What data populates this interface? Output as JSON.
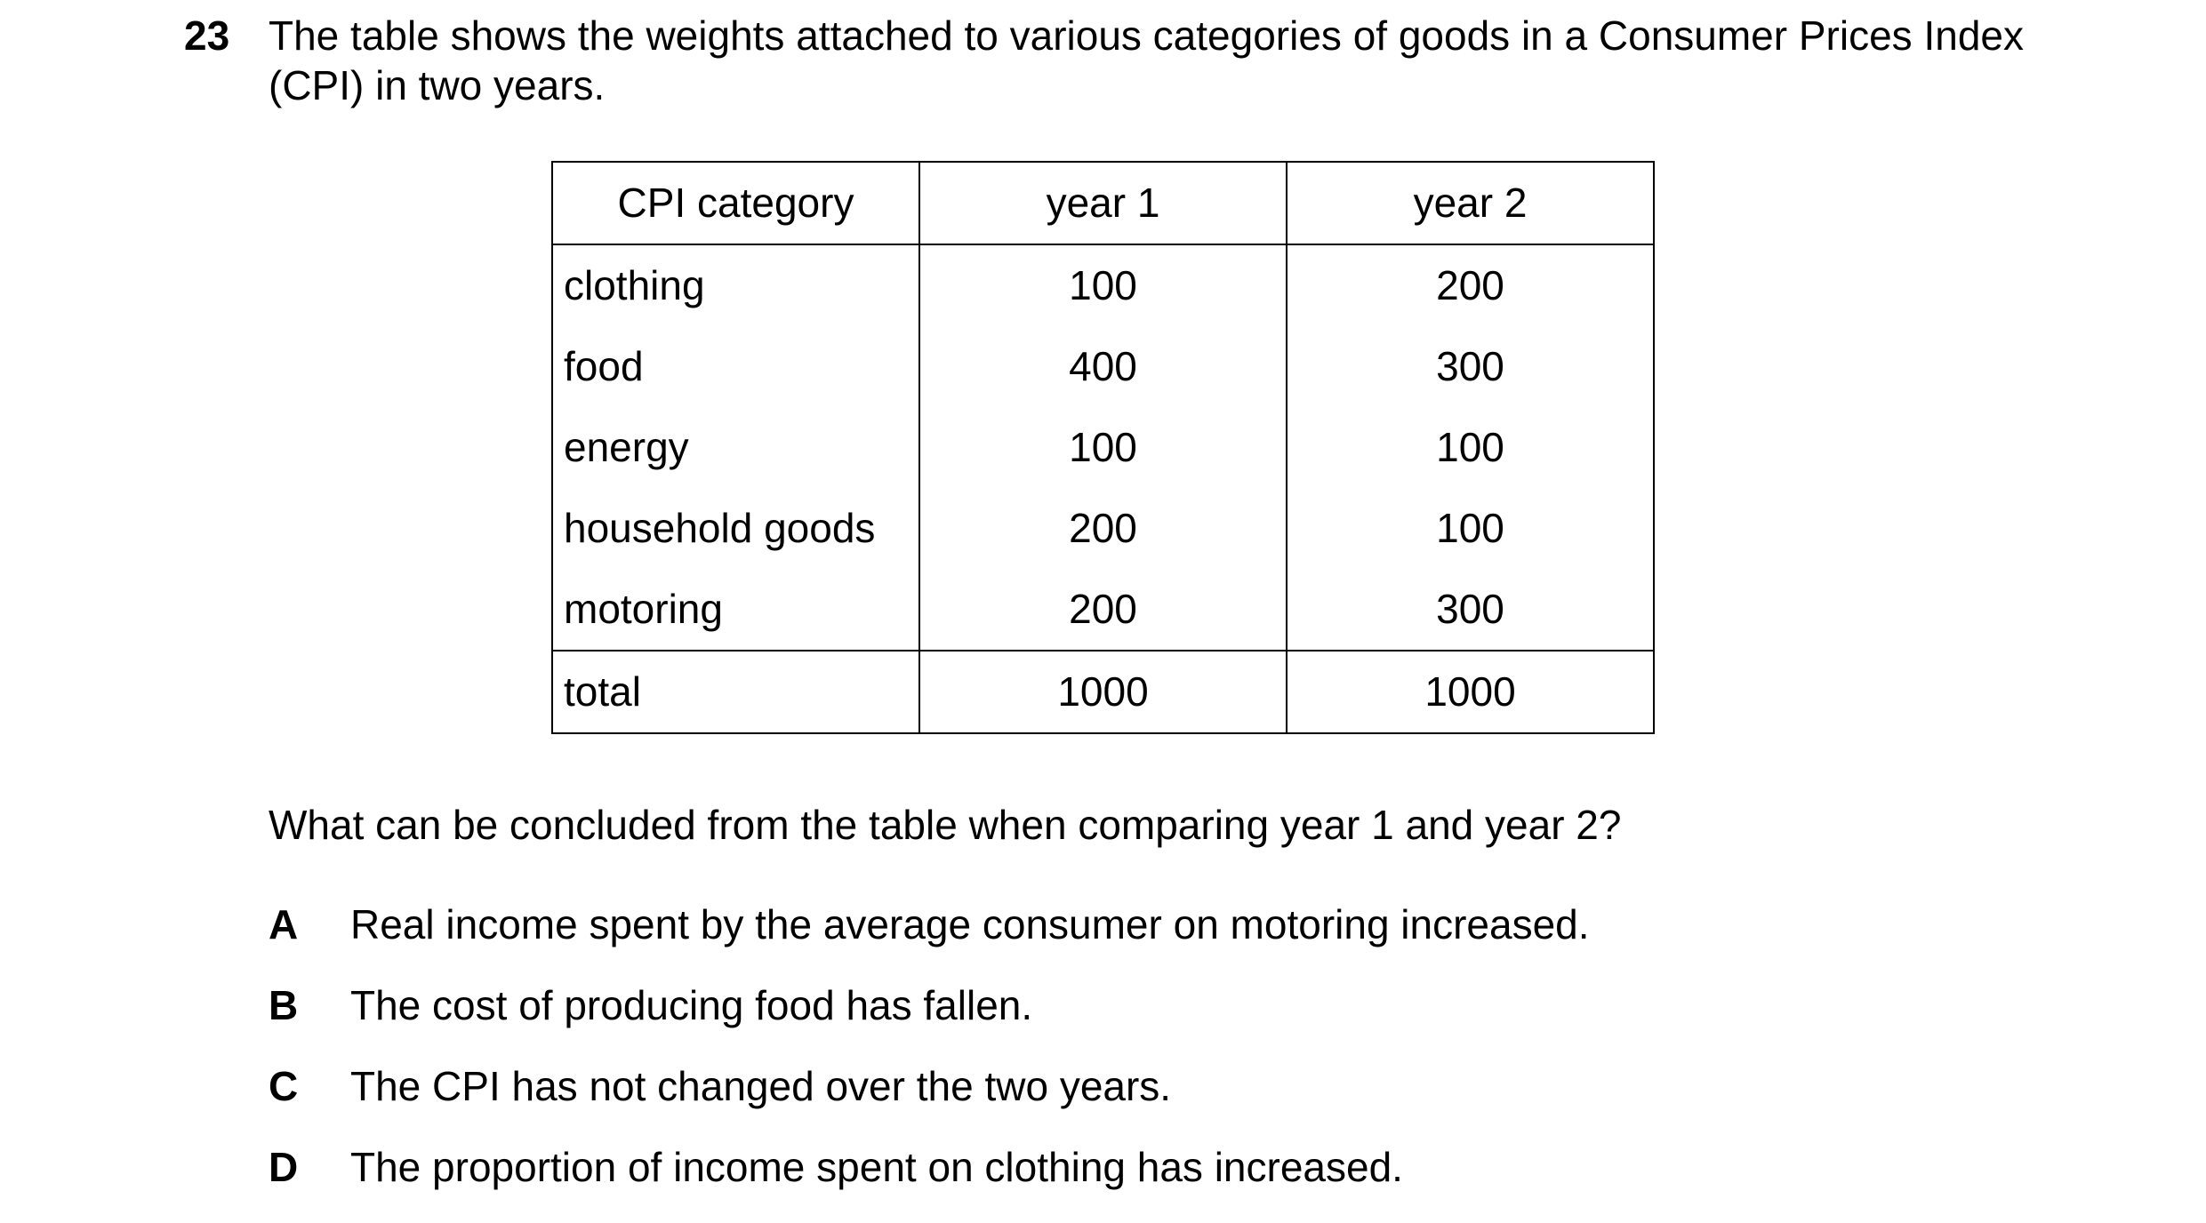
{
  "question_number": "23",
  "stem_lines": [
    "The table shows the weights attached to various categories of goods in a Consumer Prices Index",
    "(CPI) in two years."
  ],
  "table": {
    "headers": [
      "CPI category",
      "year 1",
      "year 2"
    ],
    "rows": [
      [
        "clothing",
        "100",
        "200"
      ],
      [
        "food",
        "400",
        "300"
      ],
      [
        "energy",
        "100",
        "100"
      ],
      [
        "household goods",
        "200",
        "100"
      ],
      [
        "motoring",
        "200",
        "300"
      ]
    ],
    "total": [
      "total",
      "1000",
      "1000"
    ]
  },
  "question": "What can be concluded from the table when comparing year 1 and year 2?",
  "options": [
    {
      "letter": "A",
      "text": "Real income spent by the average consumer on motoring increased."
    },
    {
      "letter": "B",
      "text": "The cost of producing food has fallen."
    },
    {
      "letter": "C",
      "text": "The CPI has not changed over the two years."
    },
    {
      "letter": "D",
      "text": "The proportion of income spent on clothing has increased."
    }
  ]
}
